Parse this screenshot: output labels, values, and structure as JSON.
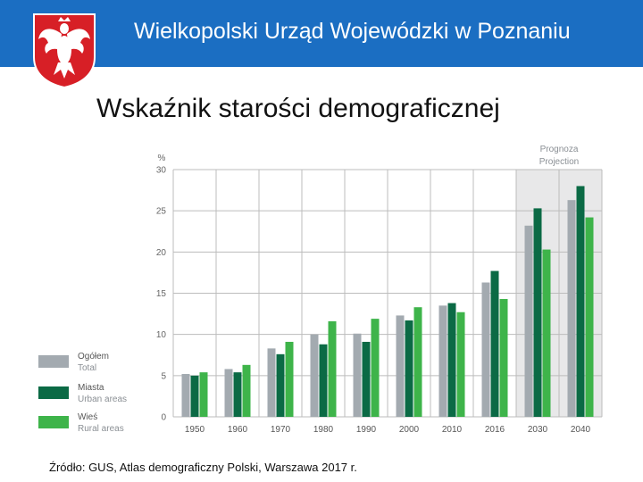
{
  "header": {
    "title": "Wielkopolski Urząd Wojewódzki w Poznaniu"
  },
  "slide": {
    "title": "Wskaźnik starości demograficznej"
  },
  "source": "Źródło: GUS, Atlas demograficzny Polski, Warszawa 2017 r.",
  "colors": {
    "header": "#1b6ec2",
    "total": "#a3aab0",
    "urban": "#0b6a45",
    "rural": "#3eb44a",
    "projection_bg": "#e8e8e9",
    "emblem_red": "#d71f26"
  },
  "chart_data": {
    "type": "bar",
    "ylabel": "%",
    "ylim": [
      0,
      30
    ],
    "yticks": [
      0,
      5,
      10,
      15,
      20,
      25,
      30
    ],
    "grid": true,
    "legend_position": "left",
    "projection": {
      "label_pl": "Prognoza",
      "label_en": "Projection",
      "from_category": "2030"
    },
    "categories": [
      "1950",
      "1960",
      "1970",
      "1980",
      "1990",
      "2000",
      "2010",
      "2016",
      "2030",
      "2040"
    ],
    "series": [
      {
        "name": "Ogółem",
        "name_en": "Total",
        "color": "#a3aab0",
        "values": [
          5.2,
          5.8,
          8.3,
          10.0,
          10.1,
          12.3,
          13.5,
          16.3,
          23.2,
          26.3
        ]
      },
      {
        "name": "Miasta",
        "name_en": "Urban areas",
        "color": "#0b6a45",
        "values": [
          5.0,
          5.4,
          7.6,
          8.8,
          9.1,
          11.7,
          13.8,
          17.7,
          25.3,
          28.0
        ]
      },
      {
        "name": "Wieś",
        "name_en": "Rural areas",
        "color": "#3eb44a",
        "values": [
          5.4,
          6.3,
          9.1,
          11.6,
          11.9,
          13.3,
          12.7,
          14.3,
          20.3,
          24.2
        ]
      }
    ]
  }
}
